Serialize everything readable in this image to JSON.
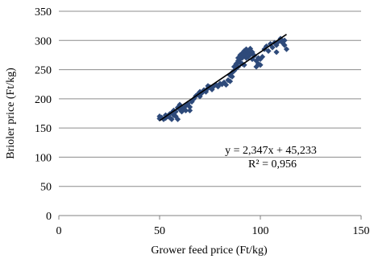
{
  "chart_data": {
    "type": "scatter",
    "title": "",
    "xlabel": "Grower feed price  (Ft/kg)",
    "ylabel": "Brioler price  (Ft/kg)",
    "xlim": [
      0,
      150
    ],
    "ylim": [
      0,
      350
    ],
    "xticks": [
      0,
      50,
      100,
      150
    ],
    "yticks": [
      0,
      50,
      100,
      150,
      200,
      250,
      300,
      350
    ],
    "grid": "horizontal",
    "marker_color": "#2e4a7a",
    "trendline_color": "#000000",
    "trendline": {
      "slope": 2.347,
      "intercept": 45.233,
      "x_range": [
        50,
        113
      ]
    },
    "annotations": [
      "y = 2,347x + 45,233",
      "R² = 0,956"
    ],
    "points": [
      [
        50,
        166
      ],
      [
        50,
        170
      ],
      [
        51,
        168
      ],
      [
        52,
        165
      ],
      [
        53,
        167
      ],
      [
        53,
        172
      ],
      [
        54,
        170
      ],
      [
        55,
        174
      ],
      [
        55,
        168
      ],
      [
        56,
        165
      ],
      [
        56,
        176
      ],
      [
        57,
        180
      ],
      [
        57,
        172
      ],
      [
        58,
        170
      ],
      [
        58,
        178
      ],
      [
        59,
        185
      ],
      [
        59,
        165
      ],
      [
        60,
        182
      ],
      [
        60,
        190
      ],
      [
        61,
        178
      ],
      [
        61,
        186
      ],
      [
        62,
        184
      ],
      [
        63,
        188
      ],
      [
        63,
        180
      ],
      [
        64,
        192
      ],
      [
        65,
        186
      ],
      [
        65,
        180
      ],
      [
        66,
        195
      ],
      [
        67,
        200
      ],
      [
        68,
        205
      ],
      [
        69,
        208
      ],
      [
        70,
        212
      ],
      [
        70,
        204
      ],
      [
        71,
        210
      ],
      [
        72,
        215
      ],
      [
        73,
        212
      ],
      [
        74,
        218
      ],
      [
        74,
        222
      ],
      [
        75,
        220
      ],
      [
        76,
        216
      ],
      [
        77,
        222
      ],
      [
        78,
        224
      ],
      [
        79,
        221
      ],
      [
        80,
        226
      ],
      [
        81,
        225
      ],
      [
        82,
        228
      ],
      [
        83,
        224
      ],
      [
        84,
        232
      ],
      [
        85,
        230
      ],
      [
        85,
        240
      ],
      [
        86,
        238
      ],
      [
        86,
        245
      ],
      [
        87,
        248
      ],
      [
        87,
        255
      ],
      [
        88,
        252
      ],
      [
        88,
        260
      ],
      [
        89,
        255
      ],
      [
        89,
        265
      ],
      [
        89,
        270
      ],
      [
        90,
        262
      ],
      [
        90,
        268
      ],
      [
        90,
        275
      ],
      [
        91,
        270
      ],
      [
        91,
        278
      ],
      [
        91,
        260
      ],
      [
        92,
        275
      ],
      [
        92,
        282
      ],
      [
        92,
        258
      ],
      [
        93,
        278
      ],
      [
        93,
        270
      ],
      [
        93,
        285
      ],
      [
        94,
        272
      ],
      [
        94,
        280
      ],
      [
        95,
        276
      ],
      [
        95,
        286
      ],
      [
        96,
        268
      ],
      [
        96,
        280
      ],
      [
        97,
        274
      ],
      [
        98,
        255
      ],
      [
        98,
        265
      ],
      [
        99,
        260
      ],
      [
        99,
        270
      ],
      [
        100,
        258
      ],
      [
        100,
        268
      ],
      [
        101,
        272
      ],
      [
        102,
        285
      ],
      [
        103,
        290
      ],
      [
        104,
        282
      ],
      [
        105,
        294
      ],
      [
        106,
        288
      ],
      [
        107,
        296
      ],
      [
        108,
        292
      ],
      [
        108,
        280
      ],
      [
        109,
        298
      ],
      [
        110,
        300
      ],
      [
        110,
        303
      ],
      [
        111,
        296
      ],
      [
        112,
        300
      ],
      [
        112,
        292
      ],
      [
        113,
        285
      ]
    ]
  }
}
